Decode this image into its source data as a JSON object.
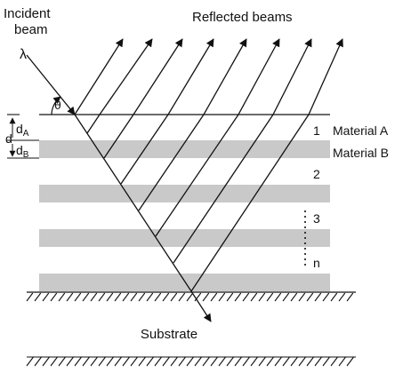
{
  "labels": {
    "incident_beam": [
      "Incident",
      "beam"
    ],
    "reflected_beams": "Reflected beams",
    "wavelength": "λ",
    "angle": "θ",
    "material_a": "Material A",
    "material_b": "Material B",
    "substrate": "Substrate",
    "d": "d",
    "d_a": "d",
    "d_a_sub": "A",
    "d_b": "d",
    "d_b_sub": "B",
    "layer_numbers": [
      "1",
      "2",
      "3",
      "n"
    ]
  },
  "colors": {
    "ink": "#111111",
    "layer_b": "#c9c9c9",
    "background": "#ffffff"
  }
}
